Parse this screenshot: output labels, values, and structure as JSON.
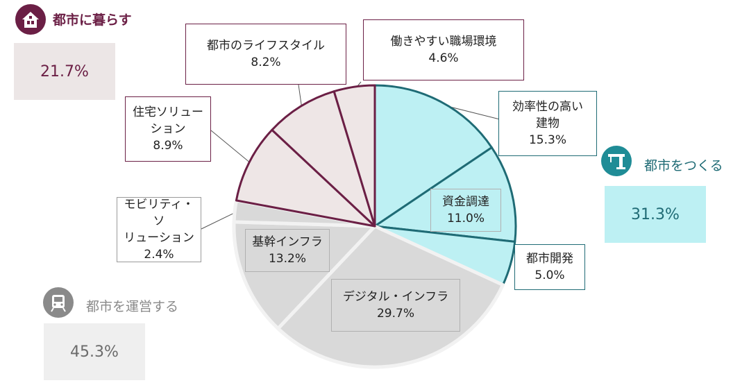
{
  "chart_data": {
    "type": "pie",
    "slices": [
      {
        "name": "効率性の高い\n建物",
        "value": 15.3,
        "label": "15.3%",
        "color": "#bdf0f3",
        "edge": "#1f6b75"
      },
      {
        "name": "資金調達",
        "value": 11.0,
        "label": "11.0%",
        "color": "#bdf0f3",
        "edge": "#1f6b75"
      },
      {
        "name": "都市開発",
        "value": 5.0,
        "label": "5.0%",
        "color": "#bdf0f3",
        "edge": "#1f6b75"
      },
      {
        "name": "デジタル・インフラ",
        "value": 29.7,
        "label": "29.7%",
        "color": "#d9d9d9",
        "edge": "#f2f2f2"
      },
      {
        "name": "基幹インフラ",
        "value": 13.2,
        "label": "13.2%",
        "color": "#d9d9d9",
        "edge": "#f2f2f2"
      },
      {
        "name": "モビリティ・ソ\nリューション",
        "value": 2.4,
        "label": "2.4%",
        "color": "#d9d9d9",
        "edge": "#f2f2f2"
      },
      {
        "name": "住宅ソリュー\nション",
        "value": 8.9,
        "label": "8.9%",
        "color": "#eee6e6",
        "edge": "#6b1f45"
      },
      {
        "name": "都市のライフスタイル",
        "value": 8.2,
        "label": "8.2%",
        "color": "#eee6e6",
        "edge": "#6b1f45"
      },
      {
        "name": "働きやすい職場環境",
        "value": 4.6,
        "label": "4.6%",
        "color": "#eee6e6",
        "edge": "#6b1f45"
      }
    ]
  },
  "groups": {
    "live": {
      "title": "都市に暮らす",
      "value": "21.7%",
      "color": "#6b1f45",
      "bg": "#ece6e6",
      "icon": "house-icon"
    },
    "build": {
      "title": "都市をつくる",
      "value": "31.3%",
      "color": "#1f6b75",
      "bg": "#bdf0f3",
      "icon": "crane-icon"
    },
    "operate": {
      "title": "都市を運営する",
      "value": "45.3%",
      "color": "#8a8a8a",
      "bg": "#efefef",
      "icon": "train-icon"
    }
  }
}
